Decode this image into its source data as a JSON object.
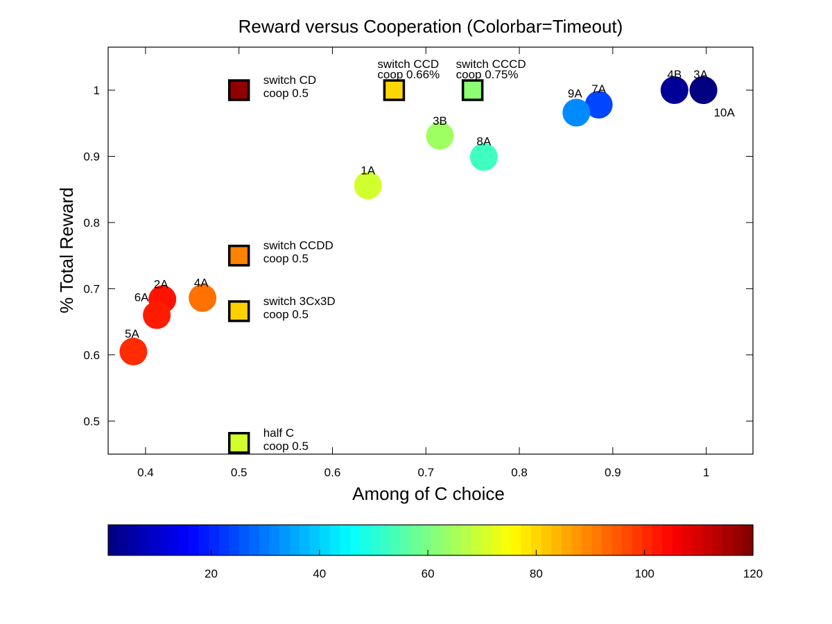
{
  "chart_data": {
    "type": "scatter",
    "title": "Reward versus Cooperation (Colorbar=Timeout)",
    "xlabel": "Among of C choice",
    "ylabel": "% Total Reward",
    "xlim": [
      0.36,
      1.05
    ],
    "ylim": [
      0.45,
      1.065
    ],
    "xticks": [
      0.4,
      0.5,
      0.6,
      0.7,
      0.8,
      0.9,
      1
    ],
    "xtick_labels": [
      "0.4",
      "0.5",
      "0.6",
      "0.7",
      "0.8",
      "0.9",
      "1"
    ],
    "yticks": [
      0.5,
      0.6,
      0.7,
      0.8,
      0.9,
      1
    ],
    "ytick_labels": [
      "0.5",
      "0.6",
      "0.7",
      "0.8",
      "0.9",
      "1"
    ],
    "grid": false,
    "colormap": "jet",
    "colorbar": {
      "orientation": "horizontal",
      "placement": "bottom",
      "range": [
        1,
        120
      ],
      "ticks": [
        20,
        40,
        60,
        80,
        100,
        120
      ],
      "tick_labels": [
        "20",
        "40",
        "60",
        "80",
        "100",
        "120"
      ]
    },
    "circles": [
      {
        "label": "1A",
        "x": 0.638,
        "y": 0.856,
        "timeout": 70
      },
      {
        "label": "2A",
        "x": 0.418,
        "y": 0.684,
        "timeout": 103
      },
      {
        "label": "3A",
        "x": 0.997,
        "y": 1.0,
        "timeout": 1
      },
      {
        "label": "3B",
        "x": 0.715,
        "y": 0.931,
        "timeout": 64
      },
      {
        "label": "4A",
        "x": 0.461,
        "y": 0.686,
        "timeout": 92
      },
      {
        "label": "4B",
        "x": 0.966,
        "y": 1.0,
        "timeout": 4
      },
      {
        "label": "5A",
        "x": 0.387,
        "y": 0.605,
        "timeout": 100
      },
      {
        "label": "6A",
        "x": 0.412,
        "y": 0.66,
        "timeout": 102
      },
      {
        "label": "7A",
        "x": 0.885,
        "y": 0.978,
        "timeout": 24
      },
      {
        "label": "8A",
        "x": 0.762,
        "y": 0.899,
        "timeout": 53
      },
      {
        "label": "9A",
        "x": 0.861,
        "y": 0.966,
        "timeout": 32
      },
      {
        "label": "10A",
        "x": 0.997,
        "y": 1.0,
        "timeout": 1
      }
    ],
    "squares": [
      {
        "name": "switch CD",
        "coop": "coop 0.5",
        "x": 0.5,
        "y": 1.0,
        "timeout": 118
      },
      {
        "name": "switch CCD",
        "coop": "coop 0.66%",
        "x": 0.666,
        "y": 1.0,
        "timeout": 80
      },
      {
        "name": "switch CCCD",
        "coop": "coop 0.75%",
        "x": 0.75,
        "y": 1.0,
        "timeout": 62
      },
      {
        "name": "switch CCDD",
        "coop": "coop 0.5",
        "x": 0.5,
        "y": 0.75,
        "timeout": 90
      },
      {
        "name": "switch 3Cx3D",
        "coop": "coop 0.5",
        "x": 0.5,
        "y": 0.666,
        "timeout": 81
      },
      {
        "name": "half C",
        "coop": "coop 0.5",
        "x": 0.5,
        "y": 0.467,
        "timeout": 70
      }
    ]
  }
}
